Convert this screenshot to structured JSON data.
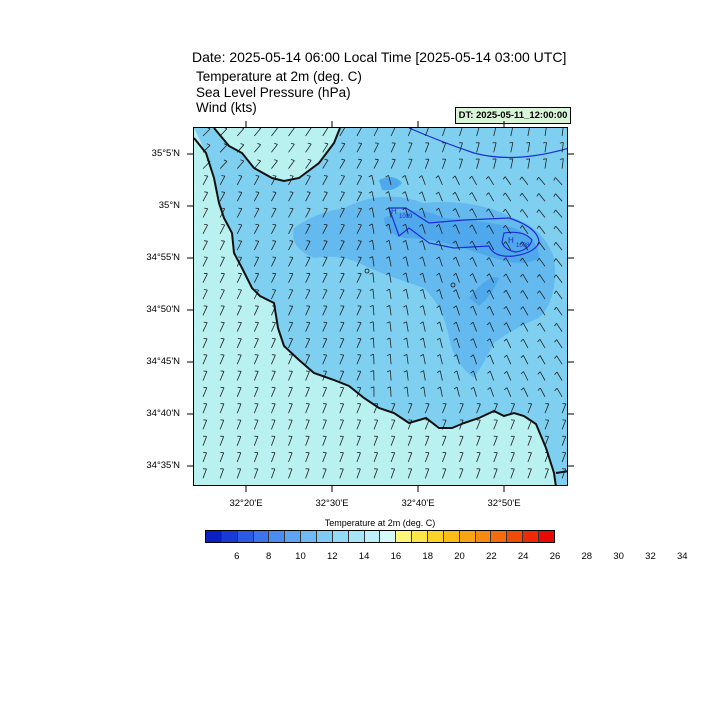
{
  "header": {
    "title": "Date: 2025-05-14  06:00 Local Time [2025-05-14  03:00 UTC]",
    "subtitles": [
      "Temperature at 2m   (deg. C)",
      "Sea Level Pressure   (hPa)",
      "Wind   (kts)"
    ],
    "dt_label": "DT: 2025-05-11_12:00:00"
  },
  "map": {
    "lat_labels": [
      "35°5'N",
      "35°N",
      "34°55'N",
      "34°50'N",
      "34°45'N",
      "34°40'N",
      "34°35'N"
    ],
    "lon_labels": [
      "32°20'E",
      "32°30'E",
      "32°40'E",
      "32°50'E"
    ],
    "pressure_labels": [
      "1009",
      "1008"
    ],
    "colors": {
      "land": "#7fd0f0",
      "sea": "#b9f0f0",
      "coast": "#111111",
      "isobar": "#1a2fd6",
      "warm_blob": "#4fa8ec"
    }
  },
  "colorbar": {
    "title": "Temperature at 2m  (deg. C)",
    "colors": [
      "#0a1fc4",
      "#1a3ad8",
      "#2a5ae6",
      "#3b74ec",
      "#4b8cf0",
      "#5da4f2",
      "#6fb9f4",
      "#80cbf6",
      "#92daf7",
      "#a6e6f8",
      "#bdf0f9",
      "#d6f8fa",
      "#fff67a",
      "#fde64a",
      "#fcd128",
      "#fbbc1a",
      "#f9a414",
      "#f78a10",
      "#f56c0c",
      "#f24b08",
      "#ee2a05",
      "#e80a04"
    ],
    "labels": [
      "6",
      "8",
      "10",
      "12",
      "14",
      "16",
      "18",
      "20",
      "22",
      "24",
      "26",
      "28",
      "30",
      "32",
      "34"
    ]
  }
}
